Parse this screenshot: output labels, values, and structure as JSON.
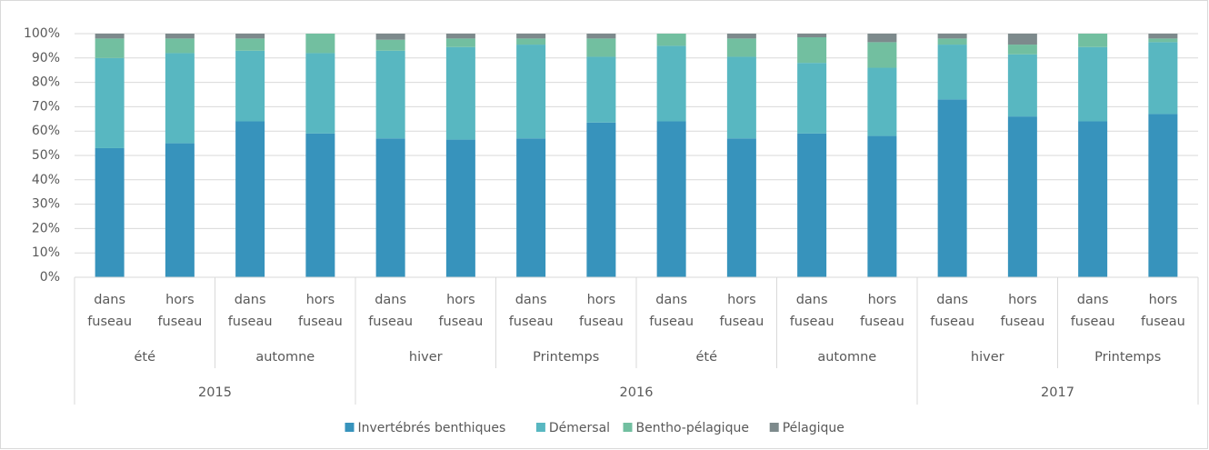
{
  "chart_data": {
    "type": "stacked_bar_100",
    "groups": [
      {
        "label": "2015",
        "subgroups": [
          {
            "label": "été",
            "categories": [
              "dans fuseau",
              "hors fuseau"
            ]
          },
          {
            "label": "automne",
            "categories": [
              "dans fuseau",
              "hors fuseau"
            ]
          }
        ]
      },
      {
        "label": "2016",
        "subgroups": [
          {
            "label": "hiver",
            "categories": [
              "dans fuseau",
              "hors fuseau"
            ]
          },
          {
            "label": "Printemps",
            "categories": [
              "dans fuseau",
              "hors fuseau"
            ]
          },
          {
            "label": "été",
            "categories": [
              "dans fuseau",
              "hors fuseau"
            ]
          },
          {
            "label": "automne",
            "categories": [
              "dans fuseau",
              "hors fuseau"
            ]
          }
        ]
      },
      {
        "label": "2017",
        "subgroups": [
          {
            "label": "hiver",
            "categories": [
              "dans fuseau",
              "hors fuseau"
            ]
          },
          {
            "label": "Printemps",
            "categories": [
              "dans fuseau",
              "hors fuseau"
            ]
          }
        ]
      }
    ],
    "series": [
      {
        "name": "Invertébrés benthiques",
        "color": "#3793bc",
        "values": [
          53,
          55,
          64,
          59,
          57,
          56.5,
          57,
          63.5,
          64,
          57,
          59,
          58,
          73,
          66,
          64,
          67
        ]
      },
      {
        "name": "Démersal",
        "color": "#58b7c1",
        "values": [
          37,
          37,
          29,
          33,
          36,
          38,
          38.5,
          27,
          31,
          33.5,
          29,
          28,
          22.5,
          25.5,
          30.5,
          29.5
        ]
      },
      {
        "name": "Bentho-pélagique",
        "color": "#72bfa0",
        "values": [
          8,
          6,
          5,
          8,
          4.5,
          3.5,
          2.5,
          7.5,
          5,
          7.5,
          10.5,
          10.5,
          2.5,
          4,
          5.5,
          1.5
        ]
      },
      {
        "name": "Pélagique",
        "color": "#7d8a8c",
        "values": [
          2,
          2,
          2,
          0,
          2.5,
          2,
          2,
          2,
          0,
          2,
          1.5,
          3.5,
          2,
          4.5,
          0,
          2
        ]
      }
    ],
    "ylim": [
      0,
      100
    ],
    "yticks": [
      {
        "value": 0,
        "label": "0%"
      },
      {
        "value": 10,
        "label": "10%"
      },
      {
        "value": 20,
        "label": "20%"
      },
      {
        "value": 30,
        "label": "30%"
      },
      {
        "value": 40,
        "label": "40%"
      },
      {
        "value": 50,
        "label": "50%"
      },
      {
        "value": 60,
        "label": "60%"
      },
      {
        "value": 70,
        "label": "70%"
      },
      {
        "value": 80,
        "label": "80%"
      },
      {
        "value": 90,
        "label": "90%"
      },
      {
        "value": 100,
        "label": "100%"
      }
    ],
    "grid": true,
    "legend": "bottom"
  }
}
